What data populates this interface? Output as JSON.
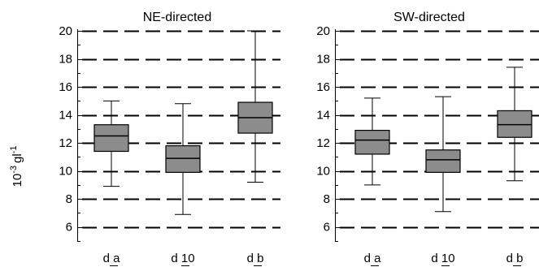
{
  "figure": {
    "ylabel": "10-3 gl-1",
    "ylabel_main": "10",
    "ylabel_exp": "-3",
    "ylabel_unit": "gl",
    "ylabel_unit_exp": "-1"
  },
  "chart_data": [
    {
      "type": "boxplot",
      "title": "NE-directed",
      "ylim": [
        5,
        20
      ],
      "yticks": [
        6,
        8,
        10,
        12,
        14,
        16,
        18,
        20
      ],
      "grid": "dashed horizontal",
      "box_color": "#8c8c8c",
      "categories": [
        "d_a",
        "d_10",
        "d_b"
      ],
      "category_labels": [
        "d a",
        "d 10",
        "d b"
      ],
      "boxes": [
        {
          "whisker_low": 8.9,
          "q1": 11.4,
          "median": 12.5,
          "q3": 13.3,
          "whisker_high": 15.0
        },
        {
          "whisker_low": 6.9,
          "q1": 9.9,
          "median": 10.9,
          "q3": 11.8,
          "whisker_high": 14.8
        },
        {
          "whisker_low": 9.2,
          "q1": 12.7,
          "median": 13.8,
          "q3": 14.9,
          "whisker_high": 20.0
        }
      ]
    },
    {
      "type": "boxplot",
      "title": "SW-directed",
      "ylim": [
        5,
        20
      ],
      "yticks": [
        6,
        8,
        10,
        12,
        14,
        16,
        18,
        20
      ],
      "grid": "dashed horizontal",
      "box_color": "#8c8c8c",
      "categories": [
        "d_a",
        "d_10",
        "d_b"
      ],
      "category_labels": [
        "d a",
        "d 10",
        "d b"
      ],
      "boxes": [
        {
          "whisker_low": 9.0,
          "q1": 11.2,
          "median": 12.2,
          "q3": 12.9,
          "whisker_high": 15.2
        },
        {
          "whisker_low": 7.1,
          "q1": 9.9,
          "median": 10.8,
          "q3": 11.5,
          "whisker_high": 15.3
        },
        {
          "whisker_low": 9.3,
          "q1": 12.4,
          "median": 13.3,
          "q3": 14.3,
          "whisker_high": 17.4
        }
      ]
    }
  ]
}
